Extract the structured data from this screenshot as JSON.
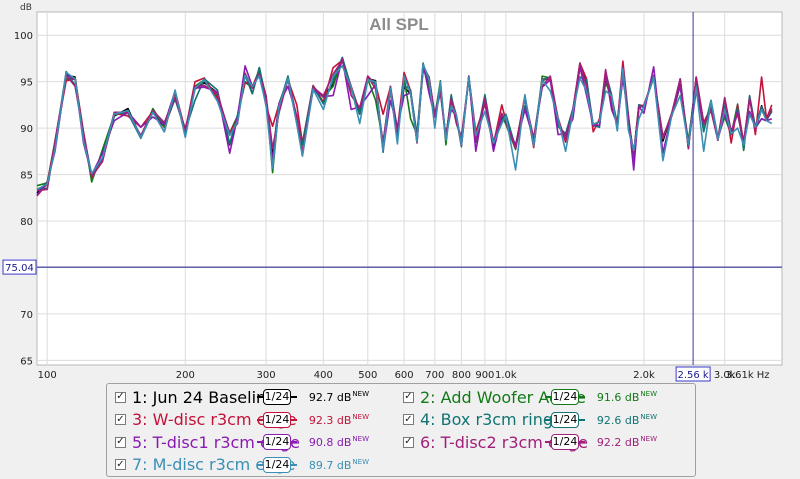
{
  "chart_data": {
    "type": "line",
    "title": "All SPL",
    "ylabel": "dB",
    "xlabel": "Hz",
    "x_scale": "log",
    "xlim": [
      95,
      4000
    ],
    "ylim": [
      64.5,
      102.5
    ],
    "y_ticks": [
      65,
      70,
      75,
      80,
      85,
      90,
      95,
      100
    ],
    "x_ticks": [
      {
        "v": 100,
        "label": "100"
      },
      {
        "v": 200,
        "label": "200"
      },
      {
        "v": 300,
        "label": "300"
      },
      {
        "v": 400,
        "label": "400"
      },
      {
        "v": 500,
        "label": "500"
      },
      {
        "v": 600,
        "label": "600"
      },
      {
        "v": 700,
        "label": "700"
      },
      {
        "v": 800,
        "label": "800"
      },
      {
        "v": 900,
        "label": "900"
      },
      {
        "v": 1000,
        "label": "1.0k"
      },
      {
        "v": 2000,
        "label": "2.0k"
      },
      {
        "v": 3000,
        "label": "3.0k"
      },
      {
        "v": 3610,
        "label": "3.61k Hz"
      }
    ],
    "cursor": {
      "x": 2560,
      "x_label": "2.56 k",
      "y": 75.04,
      "y_label": "75.04"
    },
    "base_curve": {
      "x": [
        95,
        100,
        104,
        110,
        115,
        120,
        125,
        132,
        140,
        150,
        160,
        170,
        180,
        190,
        200,
        210,
        220,
        235,
        250,
        260,
        270,
        280,
        290,
        300,
        310,
        320,
        335,
        350,
        360,
        380,
        400,
        420,
        440,
        460,
        480,
        500,
        520,
        540,
        560,
        580,
        600,
        620,
        640,
        660,
        680,
        700,
        720,
        740,
        760,
        780,
        800,
        830,
        860,
        900,
        940,
        980,
        1000,
        1050,
        1100,
        1150,
        1200,
        1250,
        1300,
        1350,
        1400,
        1450,
        1500,
        1550,
        1600,
        1650,
        1700,
        1750,
        1800,
        1850,
        1900,
        1950,
        2000,
        2100,
        2200,
        2300,
        2400,
        2500,
        2600,
        2700,
        2800,
        2900,
        3000,
        3100,
        3200,
        3300,
        3400,
        3500,
        3610,
        3700,
        3800
      ],
      "y": [
        83,
        83.8,
        88,
        95.5,
        95,
        89,
        84.5,
        87,
        91.2,
        91.5,
        89.5,
        91.5,
        90,
        93.5,
        89.5,
        94,
        95,
        93.5,
        88.8,
        91,
        95.5,
        94,
        96,
        93,
        87.2,
        92,
        95,
        91,
        88,
        94,
        93,
        95,
        97,
        94,
        92,
        95,
        94.5,
        88,
        94,
        89.5,
        95,
        93.5,
        89,
        96.5,
        95,
        91,
        94.5,
        88.5,
        93,
        91,
        88.5,
        95,
        89,
        93,
        88,
        91,
        91,
        87.5,
        93,
        88.5,
        95,
        95,
        90.5,
        89,
        91.5,
        96,
        95,
        90,
        90.5,
        95.5,
        93,
        90,
        96,
        91,
        87,
        92,
        92,
        96,
        88.5,
        91,
        95,
        88,
        95,
        90,
        92.5,
        88.5,
        93,
        89,
        92,
        88,
        93,
        89.5,
        92.5,
        90.5,
        91.5
      ]
    },
    "series": [
      {
        "name": "1: Jun 24 Baseline",
        "color": "#000000",
        "smoothing": "1/24",
        "level": "92.7 dB",
        "offsets": [
          0,
          0.4,
          -0.3,
          0.2,
          0.5,
          -0.2,
          0.3,
          -0.4,
          0.1,
          0.6,
          -0.5,
          0.2,
          0.1,
          -0.3,
          0.4,
          0.2,
          -0.1,
          0.3,
          -0.6,
          0.2,
          0.4,
          -0.3,
          0.5,
          0.1,
          -0.2,
          0.6,
          0.3,
          -0.4,
          0.2,
          0.1,
          0.5,
          -0.3,
          0.4,
          0.2,
          -0.5,
          0.3,
          0.6,
          -0.2,
          0.1,
          0.4,
          -0.6,
          0.2,
          0.3,
          -0.1,
          0.5,
          0.2,
          -0.4,
          0.6,
          0.1,
          -0.3,
          0.2,
          0.4,
          -0.5,
          0.3,
          0.1,
          0.2,
          -0.2,
          0.6,
          0.3,
          -0.4,
          0.1,
          0.5,
          0.2,
          -0.3,
          0.4,
          0.6,
          -0.1,
          0.2,
          0.3,
          -0.5,
          0.4,
          0.1,
          0.6,
          -0.2,
          0.3,
          0.5,
          0.2,
          -0.4,
          0.1,
          0.6,
          0.3,
          -0.2,
          0.4,
          0.5,
          -0.3,
          0.2,
          0.1,
          0.6,
          -0.4,
          0.3,
          0.2,
          0.5,
          -0.1,
          0.4,
          0.3
        ]
      },
      {
        "name": "2: Add Woofer AcTile",
        "color": "#127a17",
        "smoothing": "1/24",
        "level": "91.6 dB",
        "offsets": [
          0.8,
          0.3,
          0.6,
          -0.2,
          0.4,
          0.5,
          -0.3,
          0.7,
          0.2,
          0.4,
          -0.5,
          0.6,
          0.1,
          0.3,
          -0.4,
          0.5,
          0.2,
          -0.1,
          0.7,
          0.3,
          -0.6,
          0.4,
          0.2,
          0.5,
          -2.0,
          0.3,
          0.6,
          -0.4,
          0.2,
          0.5,
          0.3,
          -0.5,
          0.6,
          0.4,
          -0.2,
          0.3,
          -1.5,
          0.5,
          0.2,
          -0.6,
          0.4,
          -2.5,
          0.3,
          0.5,
          -0.4,
          0.2,
          0.6,
          -0.3,
          0.4,
          0.1,
          -0.5,
          0.6,
          0.3,
          -0.2,
          0.5,
          0.4,
          -0.6,
          0.2,
          0.3,
          -0.5,
          0.6,
          0.4,
          -0.3,
          0.2,
          0.5,
          0.6,
          -0.4,
          0.3,
          0.2,
          -0.6,
          0.4,
          0.5,
          -0.5,
          0.3,
          -1.0,
          0.2,
          0.4,
          -0.6,
          0.5,
          0.3,
          -0.4,
          0.6,
          0.2,
          -0.3,
          0.4,
          0.5,
          -1.8,
          0.3,
          0.6,
          -0.4,
          0.2,
          0.5,
          -1.5,
          0.3,
          0.4
        ]
      },
      {
        "name": "3: W-disc r3cm edge",
        "color": "#c4123a",
        "smoothing": "1/24",
        "level": "92.3 dB",
        "offsets": [
          -0.3,
          0.2,
          0.5,
          -0.4,
          0.3,
          0.6,
          0.2,
          -0.5,
          0.4,
          -0.2,
          0.6,
          0.3,
          -0.4,
          0.5,
          0.2,
          1.0,
          0.4,
          -0.3,
          0.6,
          0.2,
          -0.5,
          0.4,
          0.3,
          -0.6,
          3.0,
          0.5,
          0.2,
          1.5,
          0.4,
          0.6,
          -0.2,
          1.5,
          0.3,
          0.5,
          -0.4,
          0.6,
          0.2,
          3.5,
          0.4,
          0.3,
          1.0,
          0.5,
          -0.6,
          0.2,
          0.4,
          0.3,
          -0.5,
          0.6,
          0.2,
          0.4,
          -0.3,
          0.5,
          0.6,
          -0.4,
          0.3,
          1.5,
          -0.2,
          0.4,
          0.5,
          -0.6,
          0.3,
          0.2,
          0.6,
          -0.5,
          0.4,
          1.0,
          0.3,
          -0.4,
          0.5,
          0.2,
          -0.6,
          0.4,
          1.2,
          0.3,
          -0.2,
          0.5,
          0.4,
          -0.5,
          0.6,
          0.3,
          -0.4,
          0.2,
          0.5,
          0.6,
          -0.3,
          0.4,
          0.2,
          -0.6,
          0.5,
          0.3,
          0.4,
          -0.2,
          3.0,
          0.5,
          1.0
        ]
      },
      {
        "name": "4: Box r3cm ring",
        "color": "#127373",
        "smoothing": "1/24",
        "level": "92.6 dB",
        "offsets": [
          0.5,
          -0.3,
          0.2,
          0.6,
          -0.4,
          0.3,
          0.5,
          -0.2,
          0.4,
          0.1,
          -0.6,
          0.3,
          0.5,
          -0.4,
          0.2,
          -1.0,
          0.3,
          0.6,
          -0.5,
          0.4,
          0.2,
          -0.3,
          0.5,
          0.3,
          -1.5,
          0.4,
          0.6,
          -0.2,
          0.3,
          0.5,
          -0.4,
          0.2,
          0.6,
          0.3,
          -0.5,
          0.4,
          0.2,
          -0.6,
          0.5,
          0.3,
          -0.4,
          0.6,
          0.2,
          -0.3,
          0.4,
          0.5,
          -0.2,
          0.3,
          0.6,
          -0.5,
          0.4,
          0.2,
          -0.4,
          0.6,
          0.3,
          -0.2,
          0.5,
          0.4,
          -0.6,
          0.3,
          0.2,
          0.5,
          -0.3,
          0.4,
          0.6,
          -0.5,
          0.2,
          0.3,
          -0.4,
          0.5,
          0.6,
          -0.2,
          0.4,
          0.3,
          -0.6,
          0.5,
          0.2,
          -0.3,
          0.4,
          0.6,
          -0.5,
          0.3,
          0.2,
          -0.4,
          0.5,
          0.4,
          -0.6,
          0.3,
          0.2,
          -0.3,
          0.5,
          0.6,
          -0.2,
          0.4,
          0.3
        ]
      },
      {
        "name": "5: T-disc1 r3cm edge",
        "color": "#8a1ab0",
        "smoothing": "1/24",
        "level": "90.8 dB",
        "offsets": [
          -0.2,
          0.3,
          -0.5,
          0.4,
          0.2,
          -0.6,
          0.5,
          0.3,
          -0.4,
          0.2,
          0.6,
          -0.3,
          0.4,
          0.5,
          -0.2,
          0.3,
          -0.6,
          0.4,
          -1.5,
          0.2,
          1.2,
          0.5,
          -0.3,
          0.4,
          -0.8,
          0.6,
          -0.5,
          0.3,
          -1.0,
          0.2,
          0.4,
          -1.5,
          0.5,
          -2.0,
          0.3,
          -1.5,
          0.2,
          -0.4,
          -1.0,
          0.6,
          -1.5,
          0.3,
          -0.5,
          0.4,
          -1.2,
          0.2,
          -0.6,
          0.5,
          -1.0,
          0.3,
          -0.4,
          0.6,
          -1.5,
          0.2,
          -0.5,
          0.4,
          -0.3,
          0.5,
          -1.0,
          0.3,
          -0.6,
          0.2,
          -1.2,
          0.4,
          -0.5,
          0.6,
          -1.5,
          0.3,
          -0.2,
          0.5,
          -1.0,
          0.4,
          -0.6,
          0.2,
          -1.5,
          0.3,
          -0.4,
          0.6,
          -1.2,
          0.5,
          -0.3,
          0.2,
          -1.0,
          0.4,
          -0.6,
          0.3,
          -1.5,
          0.5,
          -0.2,
          0.4,
          -1.2,
          0.6,
          -1.5,
          0.3,
          -0.5
        ]
      },
      {
        "name": "6: T-disc2 r3cm edge",
        "color": "#a0207a",
        "smoothing": "1/24",
        "level": "92.2 dB",
        "offsets": [
          0.3,
          -0.4,
          0.6,
          0.2,
          -0.5,
          0.4,
          0.3,
          -0.6,
          0.5,
          0.2,
          -0.3,
          0.4,
          0.6,
          -0.2,
          0.3,
          0.5,
          -0.4,
          0.2,
          0.6,
          -0.5,
          0.4,
          0.3,
          -0.2,
          0.5,
          0.6,
          -0.4,
          0.3,
          0.2,
          -0.6,
          0.4,
          0.5,
          0.8,
          0.3,
          -0.5,
          0.2,
          0.6,
          -0.3,
          0.4,
          0.5,
          -0.2,
          0.6,
          0.3,
          -0.4,
          0.2,
          0.5,
          0.4,
          -0.6,
          0.3,
          0.2,
          -0.5,
          0.6,
          0.4,
          -0.3,
          0.2,
          0.5,
          0.6,
          -0.4,
          0.3,
          0.2,
          0.4,
          -0.5,
          0.6,
          0.3,
          -0.2,
          0.5,
          1.0,
          -0.6,
          0.4,
          0.2,
          0.8,
          -0.3,
          0.5,
          0.6,
          -0.4,
          0.3,
          0.2,
          0.5,
          -0.5,
          0.4,
          0.6,
          0.3,
          -0.2,
          0.5,
          0.4,
          -0.6,
          0.2,
          0.3,
          0.5,
          -0.4,
          0.6,
          0.2,
          0.3,
          -0.5,
          0.4,
          0.6
        ]
      },
      {
        "name": "7: M-disc r3cm edge",
        "color": "#3b8fb5",
        "smoothing": "1/24",
        "level": "89.7 dB",
        "offsets": [
          0.4,
          0.2,
          -0.3,
          0.5,
          0.3,
          -0.4,
          0.6,
          -0.2,
          0.3,
          0.4,
          -0.5,
          0.2,
          -0.4,
          0.6,
          -0.5,
          0.3,
          0.2,
          -0.6,
          0.4,
          -0.3,
          0.2,
          0.5,
          -0.4,
          -0.5,
          -1.5,
          0.3,
          0.4,
          -0.6,
          -1.0,
          0.2,
          -1.0,
          0.6,
          -0.3,
          0.4,
          -1.5,
          0.2,
          0.5,
          -0.4,
          0.3,
          -1.2,
          0.6,
          0.2,
          -0.5,
          0.4,
          0.3,
          -1.0,
          0.5,
          0.2,
          -0.6,
          0.4,
          -0.3,
          0.5,
          0.2,
          -1.2,
          0.4,
          -0.5,
          0.3,
          -2.0,
          0.6,
          -0.4,
          0.2,
          -1.0,
          0.5,
          -1.5,
          0.3,
          -0.6,
          -1.0,
          0.4,
          0.2,
          -1.5,
          0.5,
          -0.3,
          0.4,
          -1.2,
          0.6,
          -1.0,
          0.3,
          -0.5,
          -2.0,
          0.4,
          -1.5,
          0.2,
          -0.6,
          -2.5,
          0.5,
          0.3,
          -1.0,
          0.4,
          -2.0,
          0.2,
          -1.5,
          0.6,
          -0.5,
          0.3,
          -1.0
        ]
      }
    ]
  },
  "legend": {
    "new_tag": "NEW",
    "check_mark": "✓",
    "entries": [
      {
        "label": "1: Jun 24 Baseline",
        "smoothing": "1/24",
        "level": "92.7 dB",
        "color": "#000000"
      },
      {
        "label": "2: Add Woofer AcTile",
        "smoothing": "1/24",
        "level": "91.6 dB",
        "color": "#127a17"
      },
      {
        "label": "3: W-disc r3cm edge",
        "smoothing": "1/24",
        "level": "92.3 dB",
        "color": "#c4123a"
      },
      {
        "label": "4: Box r3cm ring",
        "smoothing": "1/24",
        "level": "92.6 dB",
        "color": "#127373"
      },
      {
        "label": "5: T-disc1 r3cm edge",
        "smoothing": "1/24",
        "level": "90.8 dB",
        "color": "#8a1ab0"
      },
      {
        "label": "6: T-disc2 r3cm edge",
        "smoothing": "1/24",
        "level": "92.2 dB",
        "color": "#a0207a"
      },
      {
        "label": "7: M-disc r3cm edge",
        "smoothing": "1/24",
        "level": "89.7 dB",
        "color": "#3b8fb5"
      }
    ]
  }
}
